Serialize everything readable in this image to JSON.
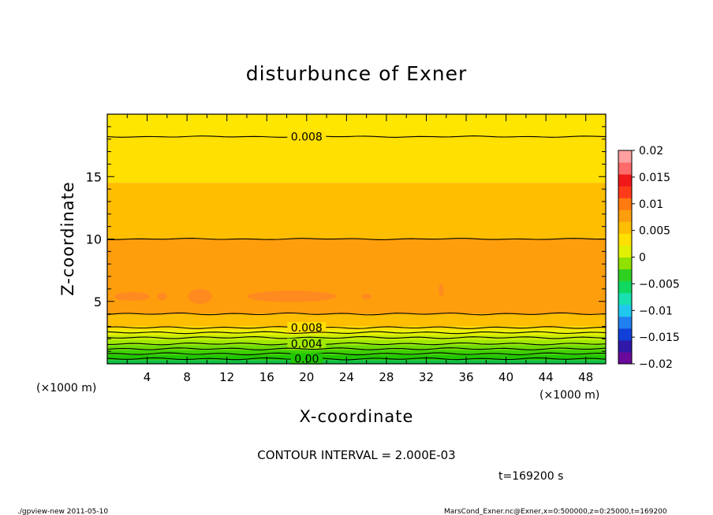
{
  "chart_data": {
    "type": "heatmap",
    "title": "disturbunce of Exner",
    "xlabel": "X-coordinate",
    "ylabel": "Z-coordinate",
    "x_unit": "(×1000 m)",
    "y_unit": "(×1000 m)",
    "xlim": [
      0,
      50
    ],
    "ylim": [
      0,
      20
    ],
    "x_ticks": [
      "4",
      "8",
      "12",
      "16",
      "20",
      "24",
      "28",
      "32",
      "36",
      "40",
      "44",
      "48"
    ],
    "y_ticks": [
      "5",
      "10",
      "15"
    ],
    "contour_interval_text": "CONTOUR INTERVAL = 2.000E-03",
    "time_label": "t=169200 s",
    "footer_left": "./gpview-new   2011-05-10",
    "footer_right": "MarsCond_Exner.nc@Exner,x=0:500000,z=0:25000,t=169200",
    "colorbar": {
      "labels": [
        "0.02",
        "0.015",
        "0.01",
        "0.005",
        "0",
        "−0.005",
        "−0.01",
        "−0.015",
        "−0.02"
      ]
    },
    "bands": [
      {
        "z0": 18.3,
        "z1": 20.0,
        "color": "#ffe600"
      },
      {
        "z0": 14.5,
        "z1": 18.3,
        "color": "#ffe000"
      },
      {
        "z0": 10.0,
        "z1": 14.5,
        "color": "#ffbe00"
      },
      {
        "z0": 4.0,
        "z1": 10.0,
        "color": "#ff9e0c"
      },
      {
        "z0": 3.0,
        "z1": 4.0,
        "color": "#ffbe00"
      },
      {
        "z0": 2.7,
        "z1": 3.0,
        "color": "#ffe000"
      },
      {
        "z0": 2.3,
        "z1": 2.7,
        "color": "#e8f000"
      },
      {
        "z0": 1.9,
        "z1": 2.3,
        "color": "#c2ec00"
      },
      {
        "z0": 1.5,
        "z1": 1.9,
        "color": "#a0e800"
      },
      {
        "z0": 1.1,
        "z1": 1.5,
        "color": "#6edc00"
      },
      {
        "z0": 0.7,
        "z1": 1.1,
        "color": "#3ed000"
      },
      {
        "z0": 0.3,
        "z1": 0.7,
        "color": "#20c800"
      },
      {
        "z0": 0.0,
        "z1": 0.3,
        "color": "#10c040"
      }
    ],
    "contours": [
      {
        "z": 18.2,
        "label": "0.008"
      },
      {
        "z": 10.0,
        "label": ""
      },
      {
        "z": 4.0,
        "label": ""
      },
      {
        "z": 2.9,
        "label": "0.008"
      },
      {
        "z": 2.5,
        "label": ""
      },
      {
        "z": 2.1,
        "label": ""
      },
      {
        "z": 1.6,
        "label": "0.004"
      },
      {
        "z": 1.2,
        "label": ""
      },
      {
        "z": 0.8,
        "label": ""
      },
      {
        "z": 0.4,
        "label": "0.00"
      }
    ],
    "patches": [
      {
        "x": 2.5,
        "z": 5.4,
        "rx": 1.8,
        "rz": 0.35
      },
      {
        "x": 5.5,
        "z": 5.4,
        "rx": 0.5,
        "rz": 0.3
      },
      {
        "x": 9.3,
        "z": 5.4,
        "rx": 1.2,
        "rz": 0.6
      },
      {
        "x": 18.5,
        "z": 5.4,
        "rx": 4.5,
        "rz": 0.45
      },
      {
        "x": 26.0,
        "z": 5.4,
        "rx": 0.5,
        "rz": 0.2
      },
      {
        "x": 33.5,
        "z": 5.9,
        "rx": 0.25,
        "rz": 0.5
      }
    ],
    "patch_color": "#ff8a20"
  }
}
